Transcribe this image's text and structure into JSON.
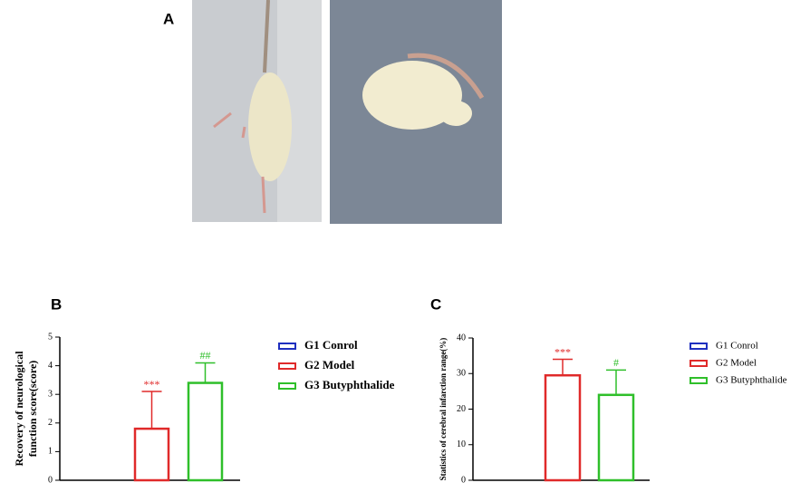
{
  "chart_data": [
    {
      "type": "image",
      "panel_label": "A"
    },
    {
      "type": "bar",
      "panel_label": "B",
      "ylabel": [
        "Recovery of neurological",
        "function score(score)"
      ],
      "ylim": [
        0,
        5
      ],
      "yticks": [
        0,
        1,
        2,
        3,
        4,
        5
      ],
      "series": [
        {
          "name": "G1 Conrol",
          "color": "#1f2fbf",
          "values": [
            0
          ],
          "errors": [
            0
          ],
          "annotation": null
        },
        {
          "name": "G2 Model",
          "color": "#e02a2a",
          "values": [
            1.8
          ],
          "errors": [
            1.3
          ],
          "annotation": "***"
        },
        {
          "name": "G3 Butyphthalide",
          "color": "#2fbf2a",
          "values": [
            3.4
          ],
          "errors": [
            0.7
          ],
          "annotation": "##"
        }
      ]
    },
    {
      "type": "bar",
      "panel_label": "C",
      "ylabel": [
        "Statistics of cerebral infarction range(%)"
      ],
      "ylim": [
        0,
        40
      ],
      "yticks": [
        0,
        10,
        20,
        30,
        40
      ],
      "series": [
        {
          "name": "G1 Conrol",
          "color": "#1f2fbf",
          "values": [
            0
          ],
          "errors": [
            0
          ],
          "annotation": null
        },
        {
          "name": "G2 Model",
          "color": "#e02a2a",
          "values": [
            29.5
          ],
          "errors": [
            4.5
          ],
          "annotation": "***"
        },
        {
          "name": "G3 Butyphthalide",
          "color": "#2fbf2a",
          "values": [
            24
          ],
          "errors": [
            7
          ],
          "annotation": "#"
        }
      ]
    }
  ]
}
